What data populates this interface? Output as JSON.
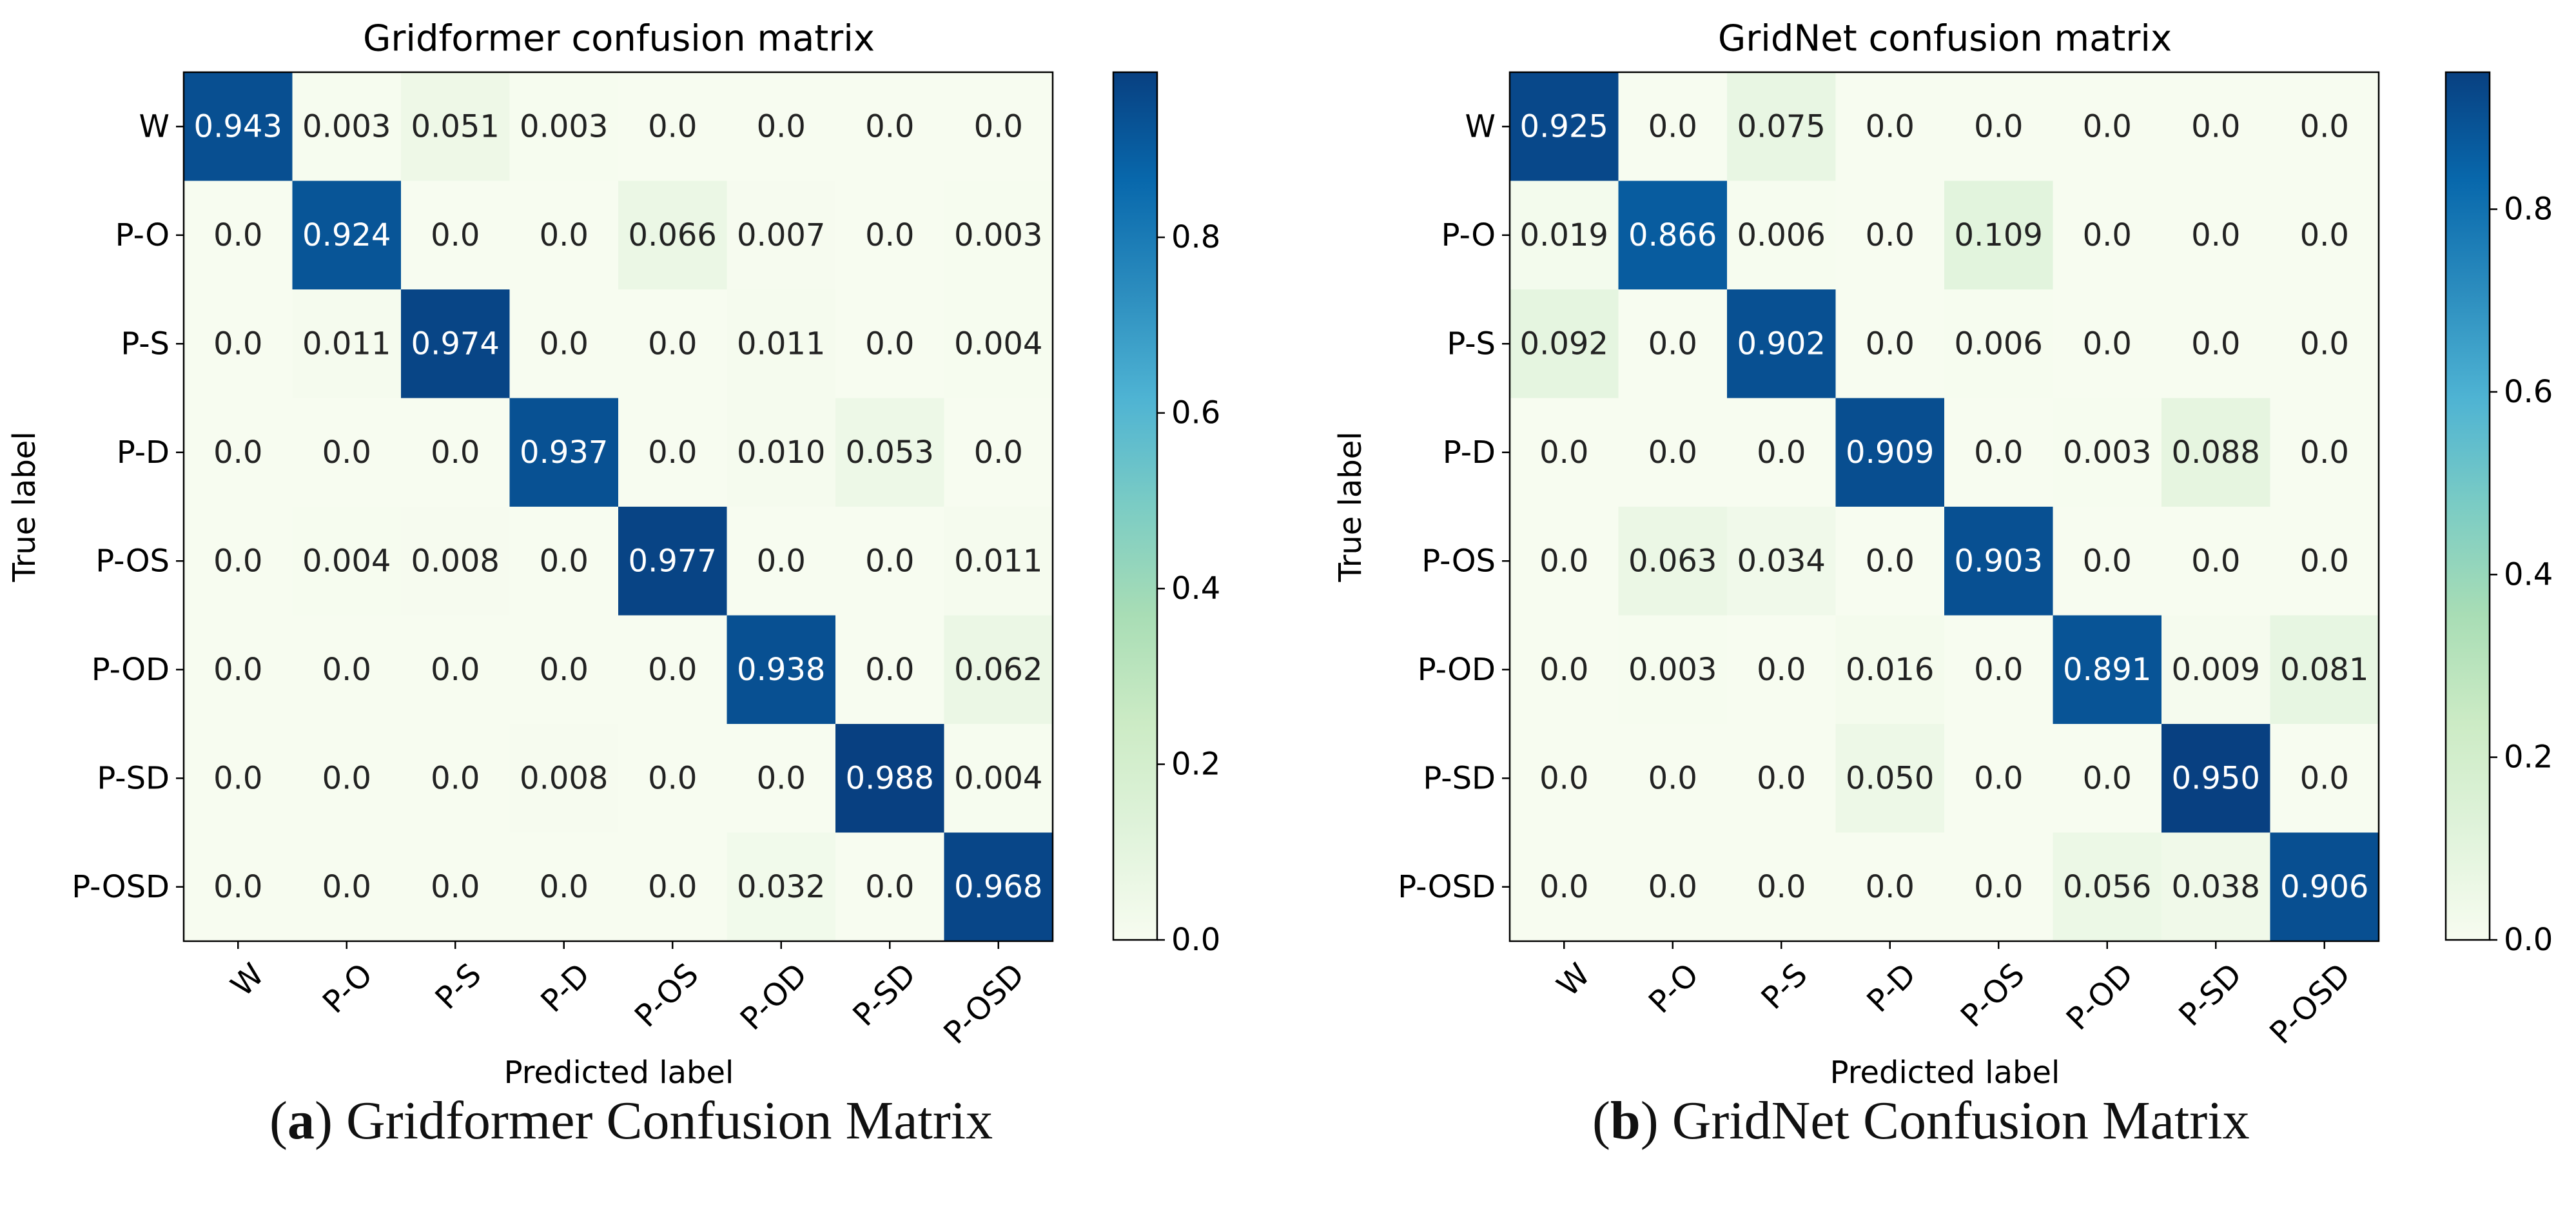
{
  "chart_data": [
    {
      "type": "heatmap",
      "title": "Gridformer confusion matrix",
      "xlabel": "Predicted label",
      "ylabel": "True label",
      "categories": [
        "W",
        "P-O",
        "P-S",
        "P-D",
        "P-OS",
        "P-OD",
        "P-SD",
        "P-OSD"
      ],
      "values": [
        [
          "0.943",
          "0.003",
          "0.051",
          "0.003",
          "0.0",
          "0.0",
          "0.0",
          "0.0"
        ],
        [
          "0.0",
          "0.924",
          "0.0",
          "0.0",
          "0.066",
          "0.007",
          "0.0",
          "0.003"
        ],
        [
          "0.0",
          "0.011",
          "0.974",
          "0.0",
          "0.0",
          "0.011",
          "0.0",
          "0.004"
        ],
        [
          "0.0",
          "0.0",
          "0.0",
          "0.937",
          "0.0",
          "0.010",
          "0.053",
          "0.0"
        ],
        [
          "0.0",
          "0.004",
          "0.008",
          "0.0",
          "0.977",
          "0.0",
          "0.0",
          "0.011"
        ],
        [
          "0.0",
          "0.0",
          "0.0",
          "0.0",
          "0.0",
          "0.938",
          "0.0",
          "0.062"
        ],
        [
          "0.0",
          "0.0",
          "0.0",
          "0.008",
          "0.0",
          "0.0",
          "0.988",
          "0.004"
        ],
        [
          "0.0",
          "0.0",
          "0.0",
          "0.0",
          "0.0",
          "0.032",
          "0.0",
          "0.968"
        ]
      ],
      "colorbar": {
        "min": 0.0,
        "max": 0.988,
        "ticks": [
          0.0,
          0.2,
          0.4,
          0.6,
          0.8
        ],
        "tick_labels": [
          "0.0",
          "0.2",
          "0.4",
          "0.6",
          "0.8"
        ],
        "colormap": "GnBu"
      },
      "caption": {
        "letter": "a",
        "text": "Gridformer Confusion Matrix"
      }
    },
    {
      "type": "heatmap",
      "title": "GridNet confusion matrix",
      "xlabel": "Predicted label",
      "ylabel": "True label",
      "categories": [
        "W",
        "P-O",
        "P-S",
        "P-D",
        "P-OS",
        "P-OD",
        "P-SD",
        "P-OSD"
      ],
      "values": [
        [
          "0.925",
          "0.0",
          "0.075",
          "0.0",
          "0.0",
          "0.0",
          "0.0",
          "0.0"
        ],
        [
          "0.019",
          "0.866",
          "0.006",
          "0.0",
          "0.109",
          "0.0",
          "0.0",
          "0.0"
        ],
        [
          "0.092",
          "0.0",
          "0.902",
          "0.0",
          "0.006",
          "0.0",
          "0.0",
          "0.0"
        ],
        [
          "0.0",
          "0.0",
          "0.0",
          "0.909",
          "0.0",
          "0.003",
          "0.088",
          "0.0"
        ],
        [
          "0.0",
          "0.063",
          "0.034",
          "0.0",
          "0.903",
          "0.0",
          "0.0",
          "0.0"
        ],
        [
          "0.0",
          "0.003",
          "0.0",
          "0.016",
          "0.0",
          "0.891",
          "0.009",
          "0.081"
        ],
        [
          "0.0",
          "0.0",
          "0.0",
          "0.050",
          "0.0",
          "0.0",
          "0.950",
          "0.0"
        ],
        [
          "0.0",
          "0.0",
          "0.0",
          "0.0",
          "0.0",
          "0.056",
          "0.038",
          "0.906"
        ]
      ],
      "colorbar": {
        "min": 0.0,
        "max": 0.95,
        "ticks": [
          0.0,
          0.2,
          0.4,
          0.6,
          0.8
        ],
        "tick_labels": [
          "0.0",
          "0.2",
          "0.4",
          "0.6",
          "0.8"
        ],
        "colormap": "GnBu"
      },
      "caption": {
        "letter": "b",
        "text": "GridNet Confusion Matrix"
      }
    }
  ],
  "captions": {
    "a": {
      "open": "(",
      "letter": "a",
      "close": ")",
      "text": " Gridformer Confusion Matrix"
    },
    "b": {
      "open": "(",
      "letter": "b",
      "close": ")",
      "text": " GridNet Confusion Matrix"
    }
  }
}
